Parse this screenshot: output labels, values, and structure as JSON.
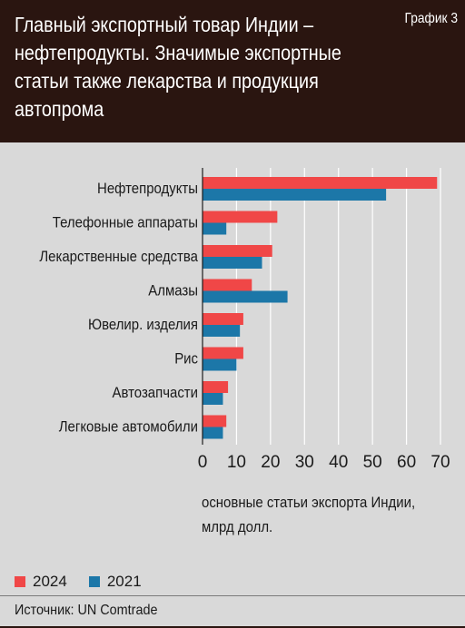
{
  "header": {
    "title": "Главный экспортный товар Индии – нефтепродукты. Значимые экспортные статьи также лекарства и продукция автопрома",
    "badge": "График 3"
  },
  "colors": {
    "header_bg": "#2a1510",
    "series_2024": "#f04747",
    "series_2021": "#1c77a8",
    "background": "#d9d9d9"
  },
  "chart_data": {
    "type": "bar",
    "orientation": "horizontal",
    "categories": [
      "Нефтепродукты",
      "Телефонные аппараты",
      "Лекарственные средства",
      "Алмазы",
      "Ювелир. изделия",
      "Рис",
      "Автозапчасти",
      "Легковые автомобили"
    ],
    "series": [
      {
        "name": "2024",
        "values": [
          69,
          22,
          20.5,
          14.5,
          12,
          12,
          7.5,
          7
        ]
      },
      {
        "name": "2021",
        "values": [
          54,
          7,
          17.5,
          25,
          11,
          10,
          6,
          6
        ]
      }
    ],
    "xlim": [
      0,
      70
    ],
    "xticks": [
      "0",
      "10",
      "20",
      "30",
      "40",
      "50",
      "60",
      "70"
    ],
    "xlabel": "основные статьи экспорта Индии, млрд долл.",
    "grid": "vertical",
    "legend_position": "bottom-left"
  },
  "legend": {
    "items": [
      {
        "label": "2024"
      },
      {
        "label": "2021"
      }
    ]
  },
  "source": "Источник: UN Comtrade"
}
